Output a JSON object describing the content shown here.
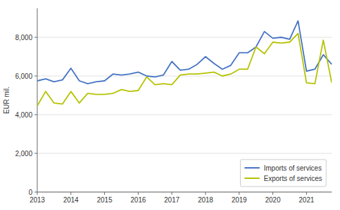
{
  "chart_data": {
    "type": "line",
    "y_label": "EUR mil.",
    "x": [
      2013,
      2013.25,
      2013.5,
      2013.75,
      2014,
      2014.25,
      2014.5,
      2014.75,
      2015,
      2015.25,
      2015.5,
      2015.75,
      2016,
      2016.25,
      2016.5,
      2016.75,
      2017,
      2017.25,
      2017.5,
      2017.75,
      2018,
      2018.25,
      2018.5,
      2018.75,
      2019,
      2019.25,
      2019.5,
      2019.75,
      2020,
      2020.25,
      2020.5,
      2020.75,
      2021,
      2021.25,
      2021.5,
      2021.75
    ],
    "series": [
      {
        "name": "Imports of services",
        "color": "#4472c4",
        "values": [
          5750,
          5850,
          5700,
          5800,
          6400,
          5750,
          5600,
          5700,
          5750,
          6100,
          6050,
          6100,
          6200,
          6000,
          5950,
          6050,
          6750,
          6300,
          6350,
          6600,
          7000,
          6650,
          6350,
          6550,
          7200,
          7200,
          7500,
          8300,
          7950,
          8000,
          7900,
          8850,
          6250,
          6350,
          7100,
          6600
        ]
      },
      {
        "name": "Exports of services",
        "color": "#b5c200",
        "values": [
          4450,
          5200,
          4600,
          4550,
          5200,
          4600,
          5100,
          5050,
          5050,
          5100,
          5300,
          5200,
          5250,
          5950,
          5550,
          5600,
          5550,
          6050,
          6100,
          6100,
          6150,
          6200,
          6000,
          6100,
          6350,
          6350,
          7500,
          7150,
          7750,
          7700,
          7750,
          8200,
          5650,
          5600,
          7850,
          5650
        ]
      }
    ],
    "xlim": [
      2013,
      2021.75
    ],
    "xticks": [
      2013,
      2014,
      2015,
      2016,
      2017,
      2018,
      2019,
      2020,
      2021
    ],
    "ylim": [
      0,
      9500
    ],
    "yticks": [
      0,
      {
        "value": 2000,
        "label": "2,000"
      },
      {
        "value": 4000,
        "label": "4,000"
      },
      {
        "value": 6000,
        "label": "6,000"
      },
      {
        "value": 8000,
        "label": "8,000"
      }
    ],
    "grid": true,
    "legend": "lower right"
  }
}
